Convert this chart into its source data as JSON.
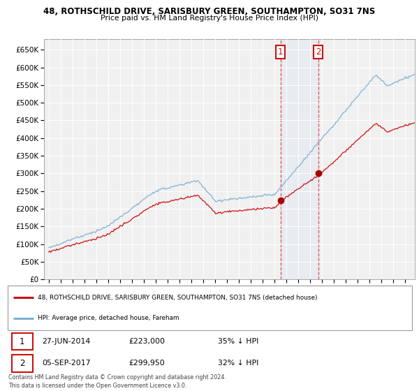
{
  "title1": "48, ROTHSCHILD DRIVE, SARISBURY GREEN, SOUTHAMPTON, SO31 7NS",
  "title2": "Price paid vs. HM Land Registry's House Price Index (HPI)",
  "ytick_vals": [
    0,
    50000,
    100000,
    150000,
    200000,
    250000,
    300000,
    350000,
    400000,
    450000,
    500000,
    550000,
    600000,
    650000
  ],
  "hpi_color": "#7bafd4",
  "price_color": "#cc1111",
  "marker_color": "#aa0000",
  "purchase1_date": 2014.49,
  "purchase1_price": 223000,
  "purchase2_date": 2017.67,
  "purchase2_price": 299950,
  "legend_line1": "48, ROTHSCHILD DRIVE, SARISBURY GREEN, SOUTHAMPTON, SO31 7NS (detached house)",
  "legend_line2": "HPI: Average price, detached house, Fareham",
  "table_row1": [
    "1",
    "27-JUN-2014",
    "£223,000",
    "35% ↓ HPI"
  ],
  "table_row2": [
    "2",
    "05-SEP-2017",
    "£299,950",
    "32% ↓ HPI"
  ],
  "footer": "Contains HM Land Registry data © Crown copyright and database right 2024.\nThis data is licensed under the Open Government Licence v3.0.",
  "shaded_x1": 2014.49,
  "shaded_x2": 2017.67,
  "xlim_left": 1994.6,
  "xlim_right": 2025.8,
  "ylim_top": 680000
}
